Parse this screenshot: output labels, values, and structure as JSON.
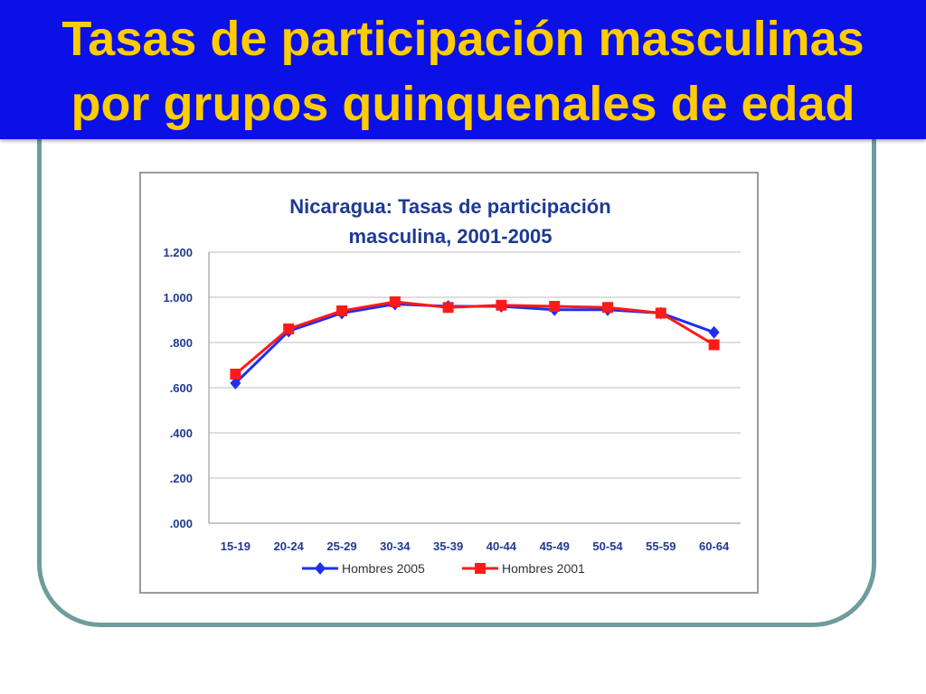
{
  "slide": {
    "title_line1": "Tasas de participación masculinas",
    "title_line2": "por grupos quinquenales de edad"
  },
  "colors": {
    "title_band": "#0a10e6",
    "title_text": "#ffcc00",
    "frame": "#6f9c9c",
    "chart_title": "#1f3a93"
  },
  "chart_data": {
    "type": "line",
    "title_line1": "Nicaragua: Tasas de participación",
    "title_line2": "masculina, 2001-2005",
    "xlabel": "",
    "ylabel": "",
    "ylim": [
      0,
      1.2
    ],
    "yticks": [
      ".000",
      ".200",
      ".400",
      ".600",
      ".800",
      "1.000",
      "1.200"
    ],
    "yticks_values": [
      0,
      0.2,
      0.4,
      0.6,
      0.8,
      1.0,
      1.2
    ],
    "categories": [
      "15-19",
      "20-24",
      "25-29",
      "30-34",
      "35-39",
      "40-44",
      "45-49",
      "50-54",
      "55-59",
      "60-64"
    ],
    "grid": true,
    "legend_position": "bottom",
    "series": [
      {
        "name": "Hombres 2005",
        "color": "#1f2ef0",
        "marker": "diamond",
        "values": [
          0.62,
          0.85,
          0.93,
          0.97,
          0.96,
          0.96,
          0.945,
          0.945,
          0.93,
          0.845
        ]
      },
      {
        "name": "Hombres 2001",
        "color": "#ff1a1a",
        "marker": "square",
        "values": [
          0.66,
          0.86,
          0.94,
          0.98,
          0.955,
          0.965,
          0.96,
          0.955,
          0.93,
          0.79
        ]
      }
    ]
  }
}
